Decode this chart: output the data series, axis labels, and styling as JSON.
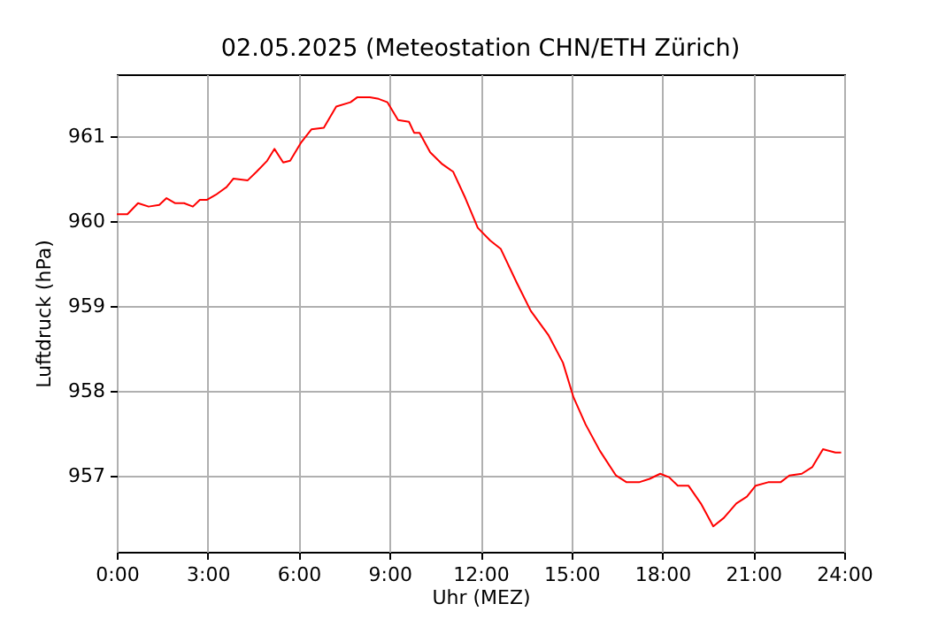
{
  "chart_data": {
    "type": "line",
    "title": "02.05.2025  (Meteostation CHN/ETH Zürich)",
    "xlabel": "Uhr (MEZ)",
    "ylabel": "Luftdruck (hPa)",
    "x": [
      0,
      0.35,
      0.7,
      1.05,
      1.4,
      1.64,
      1.93,
      2.22,
      2.51,
      2.74,
      2.98,
      3.27,
      3.62,
      3.85,
      4.32,
      4.61,
      4.96,
      5.2,
      5.49,
      5.72,
      6.07,
      6.42,
      6.83,
      7.24,
      7.71,
      7.94,
      8.35,
      8.64,
      8.93,
      9.28,
      9.64,
      9.81,
      9.99,
      10.34,
      10.74,
      11.1,
      11.5,
      11.91,
      12.32,
      12.67,
      13.2,
      13.66,
      14.25,
      14.72,
      15.07,
      15.47,
      15.94,
      16.47,
      16.82,
      17.23,
      17.58,
      17.93,
      18.22,
      18.51,
      18.86,
      19.27,
      19.68,
      20.03,
      20.44,
      20.79,
      21.08,
      21.49,
      21.9,
      22.19,
      22.6,
      22.95,
      23.3,
      23.71,
      23.9
    ],
    "series": [
      {
        "color": "#ff0000",
        "values": [
          960.08,
          960.08,
          960.21,
          960.17,
          960.19,
          960.27,
          960.21,
          960.21,
          960.17,
          960.25,
          960.25,
          960.31,
          960.4,
          960.5,
          960.48,
          960.58,
          960.71,
          960.85,
          960.69,
          960.71,
          960.92,
          961.08,
          961.1,
          961.35,
          961.4,
          961.46,
          961.46,
          961.44,
          961.4,
          961.19,
          961.17,
          961.04,
          961.04,
          960.81,
          960.67,
          960.58,
          960.27,
          959.92,
          959.77,
          959.67,
          959.27,
          958.94,
          958.65,
          958.33,
          957.92,
          957.6,
          957.29,
          957.0,
          956.92,
          956.92,
          956.96,
          957.02,
          956.98,
          956.88,
          956.88,
          956.67,
          956.4,
          956.5,
          956.67,
          956.75,
          956.88,
          956.92,
          956.92,
          957.0,
          957.02,
          957.1,
          957.31,
          957.27,
          957.27
        ]
      }
    ],
    "xlim": [
      0,
      24
    ],
    "xticks": [
      {
        "value": 0,
        "label": "0:00"
      },
      {
        "value": 3,
        "label": "3:00"
      },
      {
        "value": 6,
        "label": "6:00"
      },
      {
        "value": 9,
        "label": "9:00"
      },
      {
        "value": 12,
        "label": "12:00"
      },
      {
        "value": 15,
        "label": "15:00"
      },
      {
        "value": 18,
        "label": "18:00"
      },
      {
        "value": 21,
        "label": "21:00"
      },
      {
        "value": 24,
        "label": "24:00"
      }
    ],
    "ylim": [
      956.1,
      961.73
    ],
    "yticks": [
      957,
      958,
      959,
      960,
      961
    ],
    "grid": true
  }
}
